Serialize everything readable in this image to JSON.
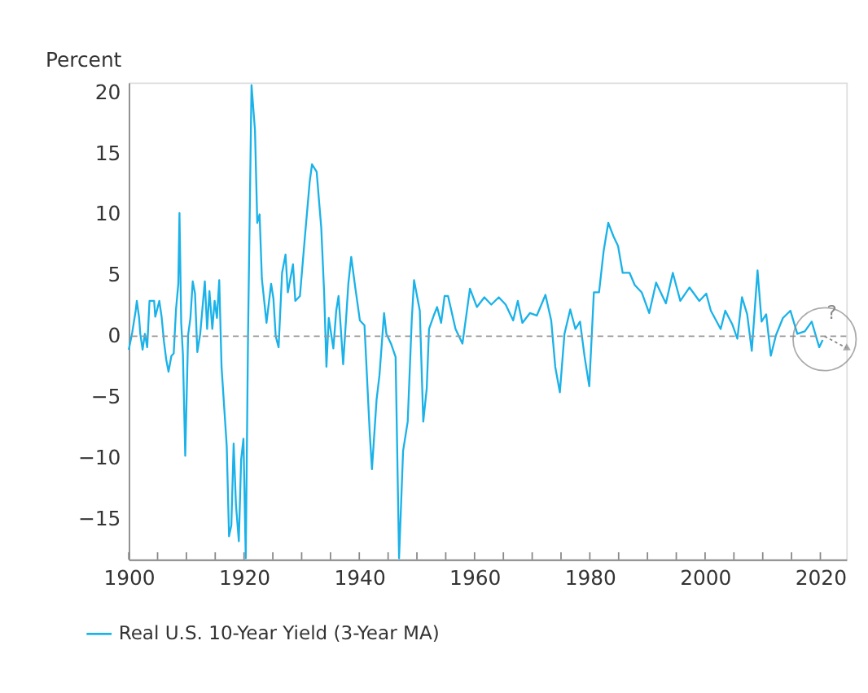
{
  "chart_data": {
    "type": "line",
    "ylabel": "Percent",
    "x": [
      1900,
      1900.6,
      1901.2,
      1901.4,
      1901.8,
      1902.0,
      1902.4,
      1902.8,
      1903.2,
      1903.6,
      1904.4,
      1904.6,
      1905.3,
      1905.7,
      1906.1,
      1906.5,
      1906.9,
      1907.4,
      1907.8,
      1908.2,
      1908.6,
      1908.8,
      1909.1,
      1909.4,
      1909.8,
      1910.3,
      1910.7,
      1911.1,
      1911.5,
      1911.9,
      1912.4,
      1913.2,
      1913.6,
      1914.0,
      1914.5,
      1914.9,
      1915.3,
      1915.7,
      1916.1,
      1917.0,
      1917.4,
      1917.8,
      1918.2,
      1918.6,
      1919.1,
      1919.5,
      1919.9,
      1920.3,
      1920.7,
      1921.3,
      1921.9,
      1922.3,
      1922.7,
      1923.1,
      1923.9,
      1924.7,
      1925.1,
      1925.5,
      1926.0,
      1926.6,
      1927.2,
      1927.6,
      1928.5,
      1928.9,
      1929.7,
      1930.5,
      1931.4,
      1931.8,
      1932.6,
      1933.4,
      1933.9,
      1934.3,
      1934.7,
      1935.5,
      1936.0,
      1936.4,
      1936.8,
      1937.2,
      1938.1,
      1938.6,
      1939.3,
      1940.1,
      1940.9,
      1941.8,
      1942.2,
      1943.0,
      1943.5,
      1944.3,
      1944.7,
      1945.5,
      1946.3,
      1946.9,
      1947.6,
      1948.4,
      1949.1,
      1949.5,
      1950.5,
      1951.1,
      1951.7,
      1952.1,
      1953.0,
      1953.5,
      1954.2,
      1954.8,
      1955.4,
      1956.7,
      1957.9,
      1959.2,
      1960.4,
      1961.7,
      1962.9,
      1964.2,
      1965.4,
      1966.7,
      1967.5,
      1968.3,
      1969.6,
      1970.8,
      1972.3,
      1973.3,
      1974.0,
      1974.8,
      1975.6,
      1976.6,
      1977.5,
      1978.3,
      1979.1,
      1979.9,
      1980.7,
      1981.6,
      1982.4,
      1983.2,
      1984.1,
      1984.9,
      1985.7,
      1986.9,
      1987.8,
      1989.0,
      1990.3,
      1991.5,
      1993.2,
      1994.4,
      1995.7,
      1997.3,
      1999.0,
      2000.2,
      2001.0,
      2002.7,
      2003.5,
      2004.7,
      2005.6,
      2006.4,
      2007.3,
      2008.1,
      2009.1,
      2009.8,
      2010.6,
      2011.4,
      2012.3,
      2013.5,
      2014.8,
      2016.0,
      2017.3,
      2018.5,
      2019.8,
      2020.4
    ],
    "series": [
      {
        "name": "Real U.S. 10-Year Yield (3-Year MA)",
        "color": "#1ab2e8",
        "values": [
          -1.1,
          0.3,
          2.1,
          2.9,
          1.5,
          0.2,
          -1.1,
          0.2,
          -0.9,
          2.9,
          2.9,
          1.6,
          2.9,
          1.6,
          -0.4,
          -1.9,
          -2.9,
          -1.6,
          -1.4,
          2.2,
          4.3,
          10.1,
          1.1,
          -1.5,
          -9.8,
          0.1,
          1.5,
          4.5,
          3.5,
          -1.3,
          0.2,
          4.5,
          0.6,
          3.7,
          0.6,
          2.9,
          1.5,
          4.6,
          -2.5,
          -9.0,
          -16.4,
          -15.5,
          -8.8,
          -13.8,
          -16.8,
          -10.1,
          -8.4,
          -18.2,
          0.2,
          20.6,
          16.9,
          9.3,
          10.0,
          4.7,
          1.1,
          4.3,
          3.1,
          0.0,
          -0.9,
          5.2,
          6.7,
          3.6,
          5.9,
          2.9,
          3.3,
          7.8,
          12.7,
          14.1,
          13.5,
          8.9,
          3.6,
          -2.5,
          1.5,
          -1.0,
          2.1,
          3.3,
          0.6,
          -2.3,
          4.3,
          6.5,
          4.0,
          1.3,
          0.9,
          -7.8,
          -10.9,
          -5.2,
          -3.2,
          1.9,
          0.2,
          -0.6,
          -1.7,
          -18.2,
          -9.4,
          -7.0,
          1.3,
          4.6,
          2.1,
          -7.0,
          -4.3,
          0.6,
          1.8,
          2.4,
          1.1,
          3.3,
          3.3,
          0.6,
          -0.6,
          3.9,
          2.4,
          3.2,
          2.6,
          3.2,
          2.6,
          1.3,
          2.9,
          1.1,
          1.9,
          1.7,
          3.4,
          1.3,
          -2.5,
          -4.6,
          0.2,
          2.2,
          0.6,
          1.2,
          -1.7,
          -4.1,
          3.6,
          3.6,
          7.0,
          9.3,
          8.2,
          7.4,
          5.2,
          5.2,
          4.2,
          3.6,
          1.9,
          4.4,
          2.7,
          5.2,
          2.9,
          4.0,
          2.9,
          3.5,
          2.1,
          0.6,
          2.1,
          1.0,
          -0.2,
          3.2,
          1.8,
          -1.2,
          5.4,
          1.2,
          1.8,
          -1.6,
          0.1,
          1.5,
          2.1,
          0.2,
          0.4,
          1.2,
          -0.9,
          -0.3
        ]
      }
    ],
    "xlim": [
      1900,
      2024.5
    ],
    "xticks": [
      1900,
      {
        "value": 1905,
        "label": null
      },
      {
        "value": 1910,
        "label": null
      },
      {
        "value": 1915,
        "label": null
      },
      1920,
      {
        "value": 1925,
        "label": null
      },
      {
        "value": 1930,
        "label": null
      },
      {
        "value": 1935,
        "label": null
      },
      1940,
      {
        "value": 1945,
        "label": null
      },
      {
        "value": 1950,
        "label": null
      },
      {
        "value": 1955,
        "label": null
      },
      1960,
      {
        "value": 1965,
        "label": null
      },
      {
        "value": 1970,
        "label": null
      },
      {
        "value": 1975,
        "label": null
      },
      1980,
      {
        "value": 1985,
        "label": null
      },
      {
        "value": 1990,
        "label": null
      },
      {
        "value": 1995,
        "label": null
      },
      2000,
      {
        "value": 2005,
        "label": null
      },
      {
        "value": 2010,
        "label": null
      },
      {
        "value": 2015,
        "label": null
      },
      2020
    ],
    "ylim": [
      -18.3,
      20.8
    ],
    "yticks": [
      -15,
      -10,
      -5,
      0,
      5,
      10,
      15,
      20
    ],
    "ref_lines": [
      {
        "axis": "y",
        "value": 0,
        "color": "#999999",
        "line_style": "dashed"
      }
    ],
    "annotations": [
      "?"
    ],
    "grid": false,
    "legend": "bottom left",
    "marker": "none",
    "line_style": "solid"
  }
}
